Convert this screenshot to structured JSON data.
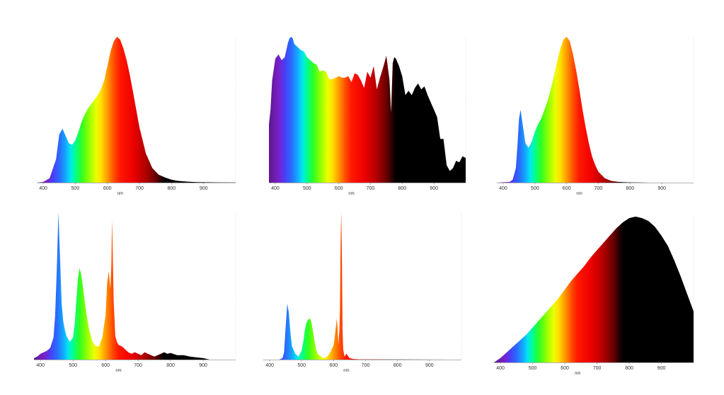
{
  "chart_data": [
    {
      "type": "area",
      "xlabel": "nm",
      "xlim": [
        380,
        1000
      ],
      "xticks": [
        400,
        500,
        600,
        700,
        800,
        900
      ],
      "ylim": [
        0,
        1
      ],
      "grid": false,
      "series": [
        {
          "x": [
            380,
            400,
            420,
            440,
            450,
            460,
            470,
            480,
            490,
            500,
            510,
            520,
            530,
            540,
            550,
            560,
            570,
            580,
            590,
            600,
            610,
            620,
            630,
            640,
            650,
            660,
            670,
            680,
            690,
            700,
            720,
            740,
            760,
            780,
            800,
            820,
            850,
            880,
            900,
            940,
            1000
          ],
          "y": [
            0,
            0.005,
            0.03,
            0.16,
            0.33,
            0.37,
            0.32,
            0.27,
            0.26,
            0.29,
            0.35,
            0.42,
            0.47,
            0.51,
            0.54,
            0.57,
            0.6,
            0.64,
            0.7,
            0.8,
            0.9,
            0.97,
            1.0,
            0.98,
            0.92,
            0.84,
            0.74,
            0.62,
            0.5,
            0.38,
            0.2,
            0.1,
            0.055,
            0.035,
            0.02,
            0.012,
            0.007,
            0.004,
            0.003,
            0.002,
            0.001
          ]
        }
      ]
    },
    {
      "type": "area",
      "xlabel": "nm",
      "xlim": [
        380,
        1000
      ],
      "xticks": [
        400,
        500,
        600,
        700,
        800,
        900
      ],
      "ylim": [
        0,
        1
      ],
      "grid": false,
      "series": [
        {
          "x": [
            380,
            385,
            390,
            400,
            410,
            420,
            430,
            440,
            445,
            450,
            455,
            460,
            470,
            480,
            490,
            500,
            510,
            520,
            530,
            540,
            550,
            560,
            570,
            580,
            590,
            600,
            610,
            620,
            630,
            640,
            650,
            660,
            670,
            680,
            690,
            700,
            710,
            720,
            730,
            740,
            750,
            760,
            765,
            770,
            775,
            780,
            790,
            800,
            810,
            820,
            830,
            840,
            850,
            860,
            870,
            880,
            890,
            900,
            910,
            920,
            930,
            940,
            950,
            960,
            970,
            980,
            990,
            1000
          ],
          "y": [
            0.4,
            0.5,
            0.7,
            0.85,
            0.88,
            0.84,
            0.86,
            0.96,
            0.99,
            1.0,
            0.99,
            0.95,
            0.93,
            0.91,
            0.9,
            0.86,
            0.84,
            0.82,
            0.81,
            0.76,
            0.77,
            0.76,
            0.71,
            0.71,
            0.72,
            0.73,
            0.72,
            0.72,
            0.73,
            0.69,
            0.75,
            0.74,
            0.7,
            0.65,
            0.76,
            0.72,
            0.8,
            0.64,
            0.72,
            0.79,
            0.87,
            0.7,
            0.48,
            0.82,
            0.86,
            0.85,
            0.8,
            0.73,
            0.6,
            0.63,
            0.6,
            0.65,
            0.68,
            0.64,
            0.66,
            0.6,
            0.55,
            0.5,
            0.45,
            0.3,
            0.3,
            0.12,
            0.08,
            0.1,
            0.15,
            0.14,
            0.18,
            0.17
          ]
        }
      ]
    },
    {
      "type": "area",
      "xlabel": "nm",
      "xlim": [
        380,
        1000
      ],
      "xticks": [
        400,
        500,
        600,
        700,
        800,
        900
      ],
      "ylim": [
        0,
        1
      ],
      "grid": false,
      "series": [
        {
          "x": [
            380,
            420,
            430,
            440,
            445,
            450,
            455,
            460,
            470,
            480,
            490,
            500,
            510,
            520,
            530,
            540,
            550,
            560,
            570,
            580,
            590,
            600,
            610,
            620,
            630,
            640,
            650,
            660,
            670,
            680,
            690,
            700,
            720,
            740,
            760,
            780,
            800,
            830,
            860,
            1000
          ],
          "y": [
            0,
            0.005,
            0.02,
            0.1,
            0.25,
            0.44,
            0.5,
            0.42,
            0.27,
            0.24,
            0.28,
            0.35,
            0.4,
            0.44,
            0.5,
            0.56,
            0.64,
            0.73,
            0.83,
            0.92,
            0.98,
            1.0,
            0.97,
            0.88,
            0.77,
            0.64,
            0.5,
            0.38,
            0.27,
            0.18,
            0.12,
            0.075,
            0.03,
            0.012,
            0.006,
            0.003,
            0.002,
            0.001,
            0,
            0
          ]
        }
      ]
    },
    {
      "type": "area",
      "xlabel": "nm",
      "xlim": [
        380,
        1000
      ],
      "xticks": [
        400,
        500,
        600,
        700,
        800,
        900
      ],
      "ylim": [
        0,
        1
      ],
      "grid": false,
      "series": [
        {
          "x": [
            380,
            390,
            400,
            410,
            420,
            430,
            440,
            445,
            450,
            455,
            460,
            465,
            470,
            475,
            480,
            490,
            500,
            505,
            510,
            515,
            520,
            525,
            530,
            540,
            550,
            560,
            570,
            580,
            590,
            600,
            605,
            610,
            612,
            615,
            618,
            620,
            622,
            625,
            628,
            630,
            635,
            640,
            650,
            660,
            670,
            680,
            690,
            700,
            710,
            720,
            730,
            740,
            750,
            760,
            770,
            780,
            790,
            800,
            820,
            840,
            860,
            880,
            900,
            920
          ],
          "y": [
            0.01,
            0.02,
            0.04,
            0.05,
            0.06,
            0.08,
            0.15,
            0.3,
            0.6,
            1.0,
            0.7,
            0.38,
            0.26,
            0.2,
            0.16,
            0.12,
            0.15,
            0.24,
            0.4,
            0.55,
            0.62,
            0.58,
            0.5,
            0.33,
            0.2,
            0.12,
            0.09,
            0.09,
            0.15,
            0.3,
            0.52,
            0.6,
            0.55,
            0.48,
            0.65,
            0.95,
            0.75,
            0.4,
            0.25,
            0.16,
            0.12,
            0.1,
            0.09,
            0.07,
            0.05,
            0.04,
            0.05,
            0.04,
            0.03,
            0.05,
            0.04,
            0.03,
            0.02,
            0.03,
            0.04,
            0.05,
            0.04,
            0.045,
            0.03,
            0.03,
            0.02,
            0.015,
            0.01,
            0
          ]
        }
      ]
    },
    {
      "type": "area",
      "xlabel": "nm",
      "xlim": [
        380,
        1000
      ],
      "xticks": [
        400,
        500,
        600,
        700,
        800,
        900
      ],
      "ylim": [
        0,
        1
      ],
      "grid": false,
      "series": [
        {
          "x": [
            380,
            430,
            440,
            445,
            450,
            455,
            460,
            465,
            470,
            480,
            490,
            500,
            505,
            510,
            515,
            520,
            525,
            530,
            535,
            540,
            545,
            550,
            560,
            570,
            580,
            590,
            600,
            605,
            610,
            612,
            615,
            618,
            620,
            622,
            624,
            626,
            628,
            630,
            634,
            640,
            650,
            660,
            680,
            700,
            800,
            1000
          ],
          "y": [
            0,
            0,
            0.01,
            0.05,
            0.22,
            0.38,
            0.32,
            0.18,
            0.09,
            0.04,
            0.02,
            0.06,
            0.12,
            0.2,
            0.25,
            0.27,
            0.28,
            0.26,
            0.2,
            0.13,
            0.07,
            0.04,
            0.02,
            0.01,
            0.02,
            0.05,
            0.1,
            0.18,
            0.28,
            0.22,
            0.1,
            0.2,
            0.35,
            0.8,
            1.0,
            0.7,
            0.2,
            0.07,
            0.02,
            0.04,
            0.01,
            0.005,
            0.002,
            0.002,
            0.001,
            0
          ]
        }
      ]
    },
    {
      "type": "area",
      "xlabel": "nm",
      "xlim": [
        380,
        1000
      ],
      "xticks": [
        400,
        500,
        600,
        700,
        800,
        900
      ],
      "ylim": [
        0,
        1
      ],
      "grid": false,
      "series": [
        {
          "x": [
            380,
            400,
            420,
            440,
            460,
            480,
            500,
            520,
            540,
            560,
            580,
            600,
            620,
            640,
            660,
            680,
            700,
            720,
            740,
            760,
            780,
            800,
            820,
            840,
            860,
            880,
            900,
            920,
            940,
            960,
            980,
            1000
          ],
          "y": [
            0.0,
            0.03,
            0.07,
            0.11,
            0.15,
            0.19,
            0.24,
            0.29,
            0.34,
            0.39,
            0.44,
            0.5,
            0.56,
            0.61,
            0.66,
            0.72,
            0.77,
            0.82,
            0.87,
            0.92,
            0.96,
            0.99,
            1.0,
            0.99,
            0.97,
            0.93,
            0.87,
            0.8,
            0.7,
            0.59,
            0.47,
            0.35
          ]
        }
      ]
    }
  ]
}
